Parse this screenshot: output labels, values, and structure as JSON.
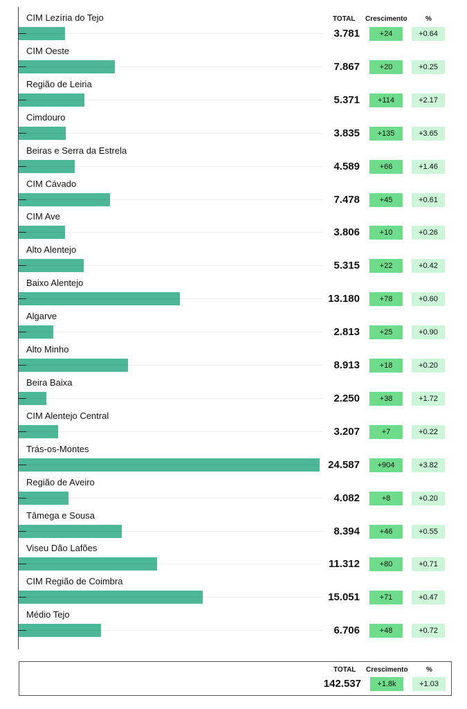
{
  "chart_data": {
    "type": "bar",
    "orientation": "horizontal",
    "categories": [
      "CIM Lezíria do Tejo",
      "CIM Oeste",
      "Região de Leiria",
      "Cimdouro",
      "Beiras e Serra da Estrela",
      "CIM Cávado",
      "CIM Ave",
      "Alto Alentejo",
      "Baixo Alentejo",
      "Algarve",
      "Alto Minho",
      "Beira Baixa",
      "CIM Alentejo Central",
      "Trás-os-Montes",
      "Região de Aveiro",
      "Tâmega e Sousa",
      "Viseu Dão Lafões",
      "CIM Região de Coimbra",
      "Médio Tejo"
    ],
    "values": [
      3781,
      7867,
      5371,
      3835,
      4589,
      7478,
      3806,
      5315,
      13180,
      2813,
      8913,
      2250,
      3207,
      24587,
      4082,
      8394,
      11312,
      15051,
      6706
    ],
    "value_labels": [
      "3.781",
      "7.867",
      "5.371",
      "3.835",
      "4.589",
      "7.478",
      "3.806",
      "5.315",
      "13.180",
      "2.813",
      "8.913",
      "2.250",
      "3.207",
      "24.587",
      "4.082",
      "8.394",
      "11.312",
      "15.051",
      "6.706"
    ],
    "growth": [
      "+24",
      "+20",
      "+114",
      "+135",
      "+66",
      "+45",
      "+10",
      "+22",
      "+78",
      "+25",
      "+18",
      "+38",
      "+7",
      "+904",
      "+8",
      "+46",
      "+80",
      "+71",
      "+48"
    ],
    "percent": [
      "+0.64",
      "+0.25",
      "+2.17",
      "+3.65",
      "+1.46",
      "+0.61",
      "+0.26",
      "+0.42",
      "+0.60",
      "+0.90",
      "+0.20",
      "+1.72",
      "+0.22",
      "+3.82",
      "+0.20",
      "+0.55",
      "+0.71",
      "+0.47",
      "+0.72"
    ],
    "columns": {
      "total": "TOTAL",
      "growth": "Crescimento",
      "percent": "%"
    },
    "bar_color": "#4cb897",
    "growth_color": "#6fdc8c",
    "percent_color": "#cdf5d7",
    "xlim": [
      0,
      24587
    ],
    "grid": true
  },
  "summary": {
    "total_label": "TOTAL",
    "growth_label": "Crescimento",
    "percent_label": "%",
    "total": "142.537",
    "growth": "+1.8k",
    "percent": "+1.03"
  }
}
